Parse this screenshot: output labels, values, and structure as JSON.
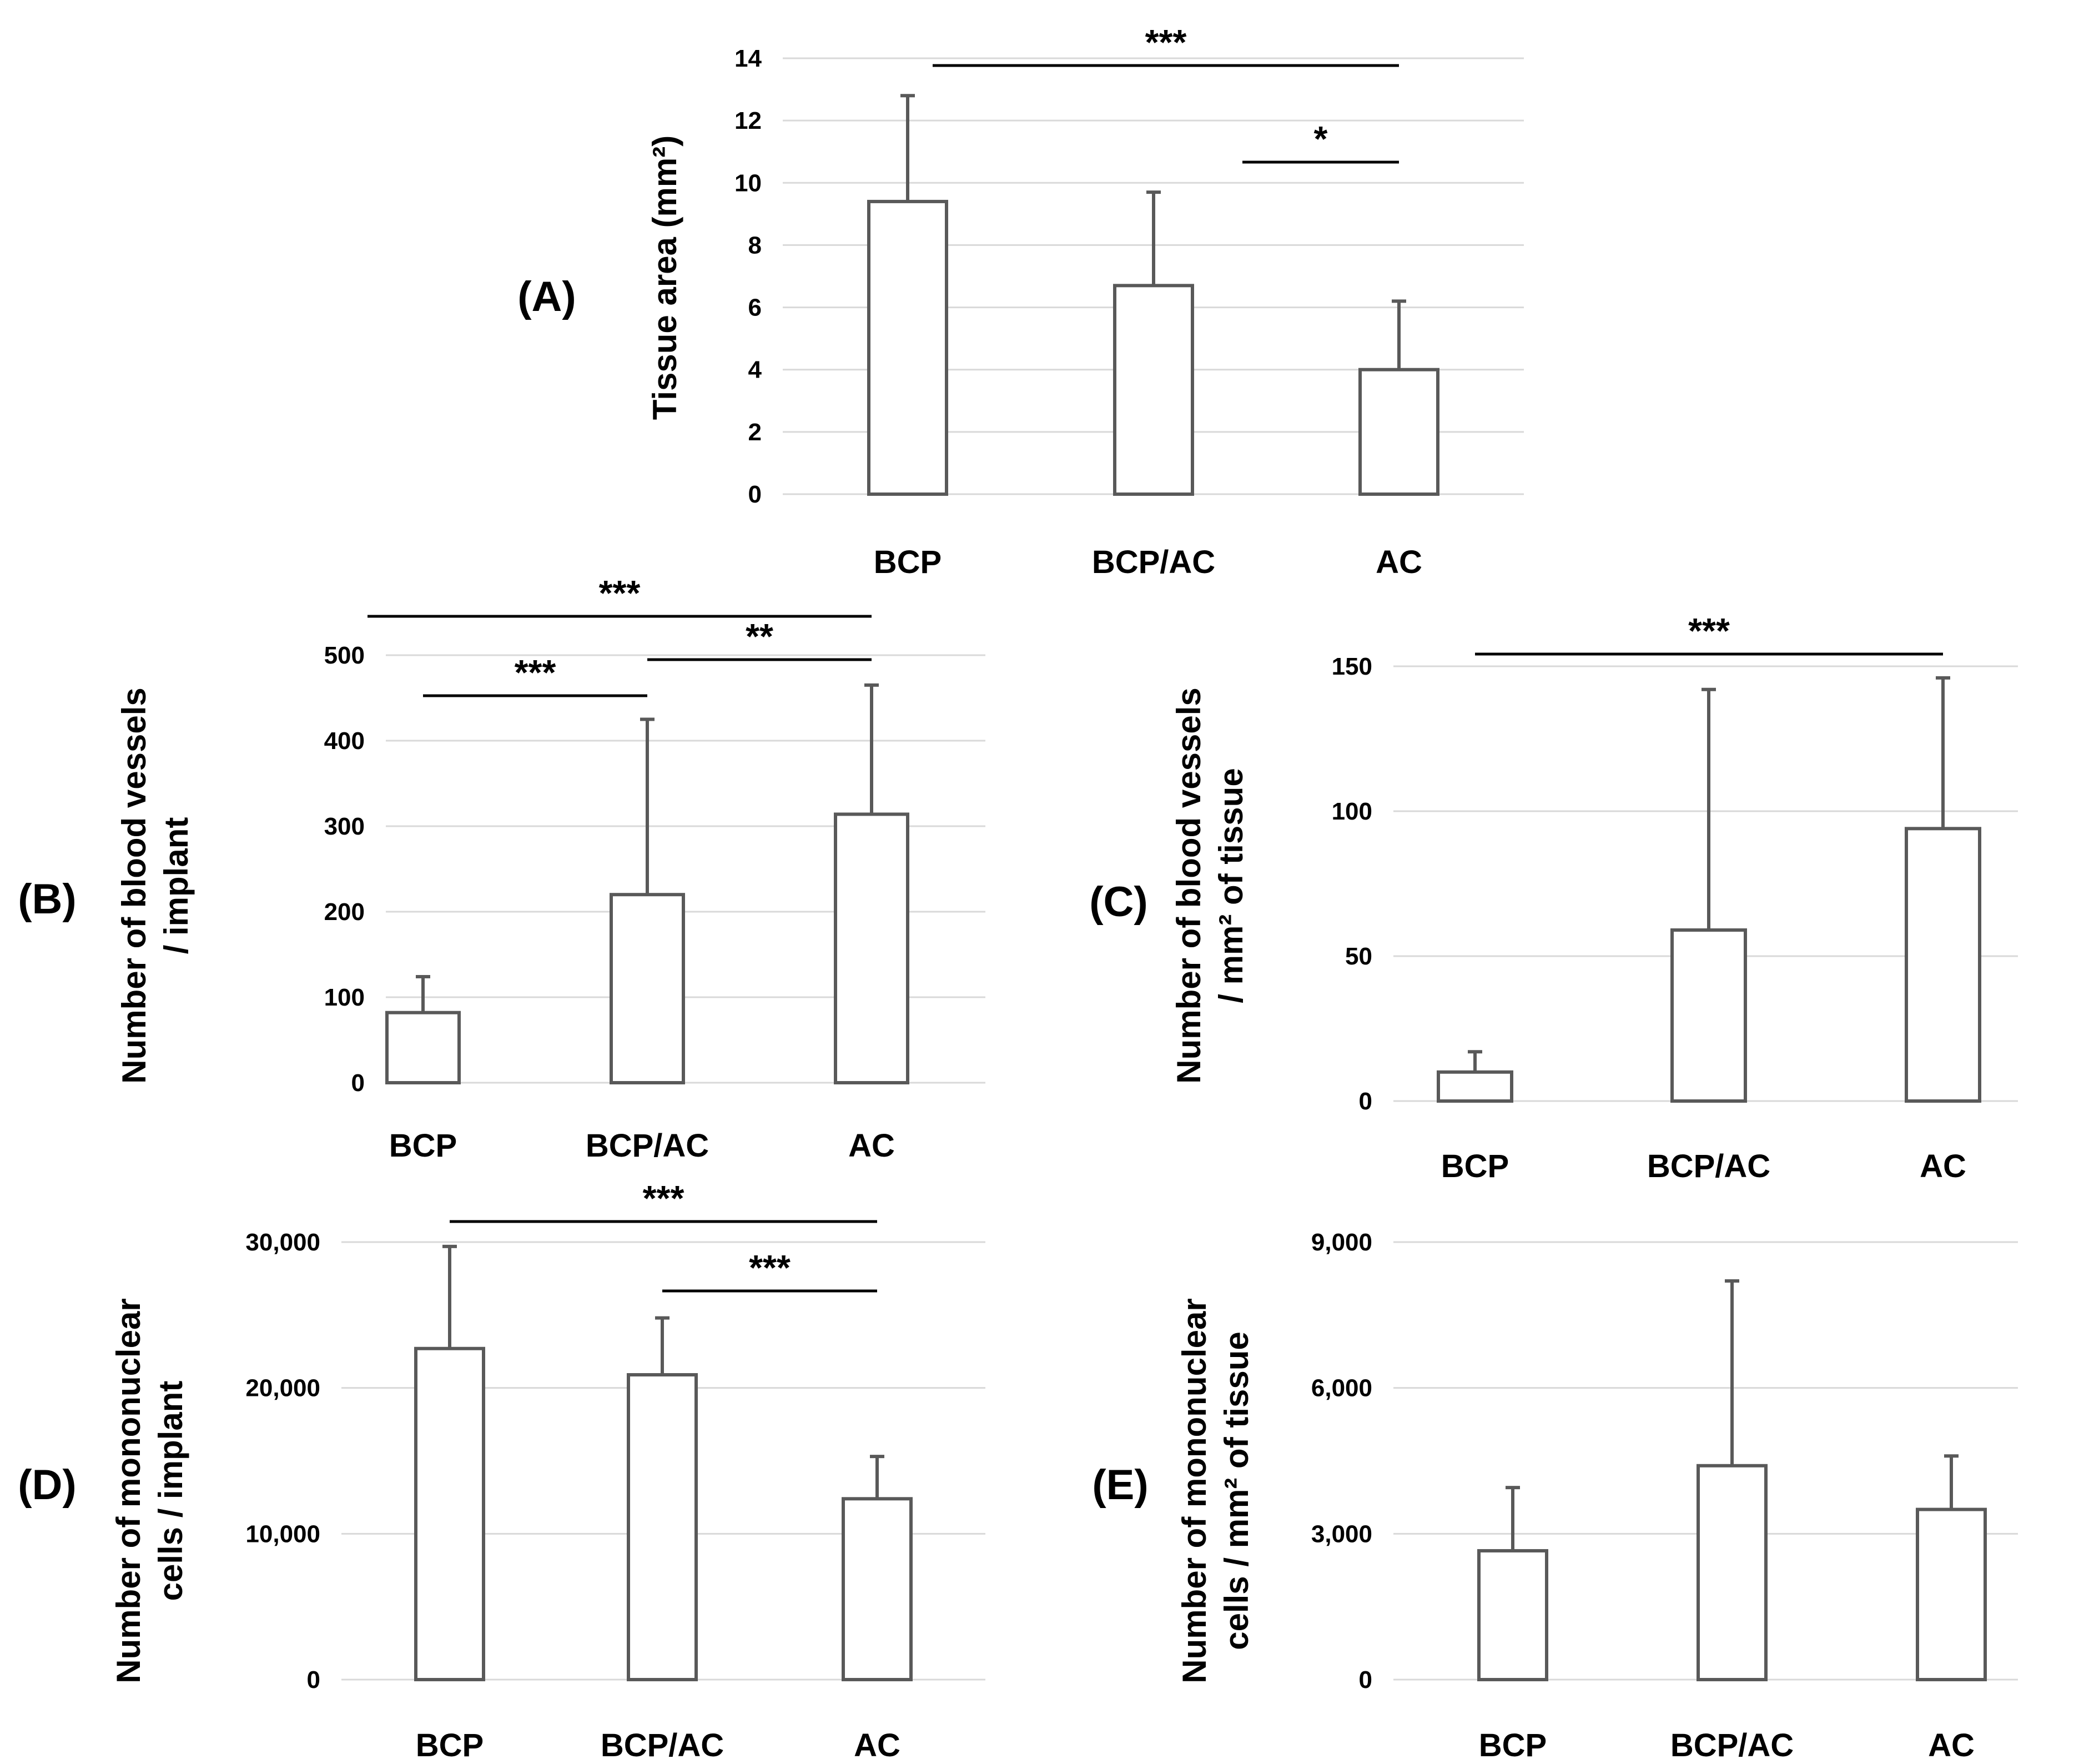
{
  "chart_data": [
    {
      "id": "A",
      "type": "bar",
      "panel_label": "(A)",
      "categories": [
        "BCP",
        "BCP/AC",
        "AC"
      ],
      "values": [
        9.4,
        6.7,
        4.0
      ],
      "errors": [
        3.4,
        3.0,
        2.2
      ],
      "ylabel_lines": [
        "Tissue area (mm²)"
      ],
      "ylim": [
        0,
        14
      ],
      "yticks": [
        0,
        2,
        4,
        6,
        8,
        10,
        12,
        14
      ],
      "ytick_labels": [
        "0",
        "2",
        "4",
        "6",
        "8",
        "10",
        "12",
        "14"
      ],
      "grid": true,
      "significance": [
        {
          "from": 0,
          "to": 2,
          "label": "***"
        },
        {
          "from": 1,
          "to": 2,
          "label": "*"
        }
      ]
    },
    {
      "id": "B",
      "type": "bar",
      "panel_label": "(B)",
      "categories": [
        "BCP",
        "BCP/AC",
        "AC"
      ],
      "values": [
        82,
        220,
        314
      ],
      "errors": [
        42,
        205,
        151
      ],
      "ylabel_lines": [
        "Number of blood vessels",
        "/ implant"
      ],
      "ylim": [
        0,
        500
      ],
      "yticks": [
        0,
        100,
        200,
        300,
        400,
        500
      ],
      "ytick_labels": [
        "0",
        "100",
        "200",
        "300",
        "400",
        "500"
      ],
      "grid": true,
      "significance": [
        {
          "from": 0,
          "to": 2,
          "label": "***"
        },
        {
          "from": 1,
          "to": 2,
          "label": "**"
        },
        {
          "from": 0,
          "to": 1,
          "label": "***"
        }
      ]
    },
    {
      "id": "C",
      "type": "bar",
      "panel_label": "(C)",
      "categories": [
        "BCP",
        "BCP/AC",
        "AC"
      ],
      "values": [
        10,
        59,
        94
      ],
      "errors": [
        7,
        83,
        52
      ],
      "ylabel_lines": [
        "Number of blood vessels",
        "/ mm² of tissue"
      ],
      "ylim": [
        0,
        150
      ],
      "yticks": [
        0,
        50,
        100,
        150
      ],
      "ytick_labels": [
        "0",
        "50",
        "100",
        "150"
      ],
      "grid": true,
      "significance": [
        {
          "from": 0,
          "to": 2,
          "label": "***"
        }
      ]
    },
    {
      "id": "D",
      "type": "bar",
      "panel_label": "(D)",
      "categories": [
        "BCP",
        "BCP/AC",
        "AC"
      ],
      "values": [
        22700,
        20900,
        12400
      ],
      "errors": [
        7000,
        3900,
        2900
      ],
      "ylabel_lines": [
        "Number of mononuclear",
        "cells / implant"
      ],
      "ylim": [
        0,
        30000
      ],
      "yticks": [
        0,
        10000,
        20000,
        30000
      ],
      "ytick_labels": [
        "0",
        "10,000",
        "20,000",
        "30,000"
      ],
      "grid": true,
      "significance": [
        {
          "from": 0,
          "to": 2,
          "label": "***"
        },
        {
          "from": 1,
          "to": 2,
          "label": "***"
        }
      ]
    },
    {
      "id": "E",
      "type": "bar",
      "panel_label": "(E)",
      "categories": [
        "BCP",
        "BCP/AC",
        "AC"
      ],
      "values": [
        2650,
        4400,
        3500
      ],
      "errors": [
        1300,
        3800,
        1100
      ],
      "ylabel_lines": [
        "Number of mononuclear",
        "cells / mm² of tissue"
      ],
      "ylim": [
        0,
        9000
      ],
      "yticks": [
        0,
        3000,
        6000,
        9000
      ],
      "ytick_labels": [
        "0",
        "3,000",
        "6,000",
        "9,000"
      ],
      "grid": true,
      "significance": []
    }
  ],
  "colors": {
    "bar_fill": "#ffffff",
    "bar_stroke": "#595959",
    "error_bar": "#595959",
    "grid": "#d9d9d9",
    "significance_line": "#000000"
  }
}
